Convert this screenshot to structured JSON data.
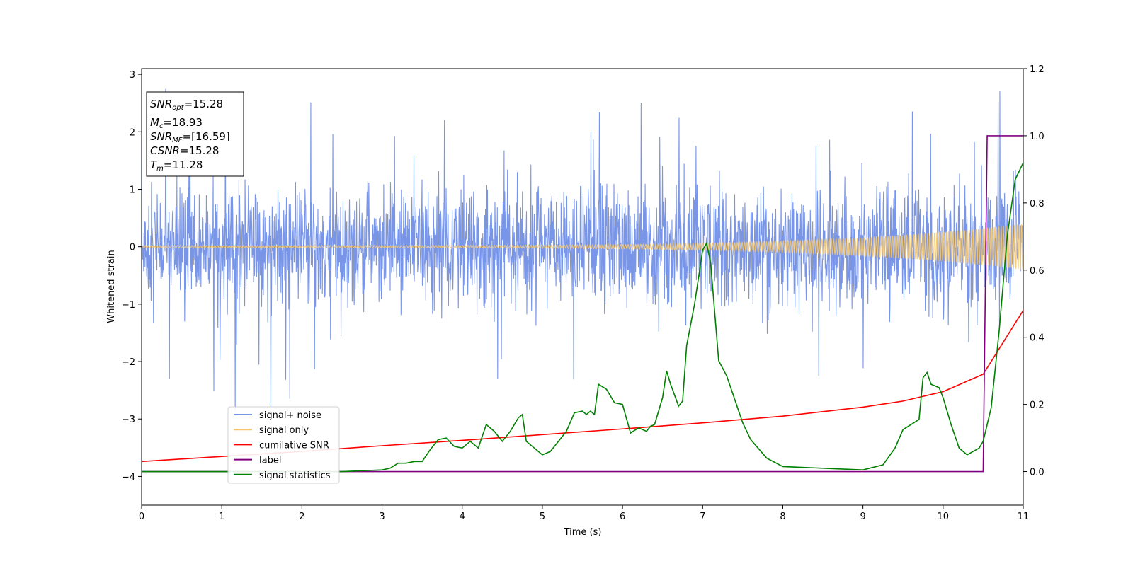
{
  "chart_data": {
    "type": "line",
    "xlabel": "Time (s)",
    "ylabel": "Whitened strain",
    "xlim": [
      0,
      11
    ],
    "ylim": [
      -4.5,
      3.1
    ],
    "y2lim": [
      -0.1,
      1.2
    ],
    "x_ticks": [
      "0",
      "1",
      "2",
      "3",
      "4",
      "5",
      "6",
      "7",
      "8",
      "9",
      "10",
      "11"
    ],
    "y_ticks": [
      "−4",
      "−3",
      "−2",
      "−1",
      "0",
      "1",
      "2",
      "3"
    ],
    "y2_ticks": [
      "0.0",
      "0.2",
      "0.4",
      "0.6",
      "0.8",
      "1.0",
      "1.2"
    ],
    "grid": false,
    "legend_position": "lower-left",
    "annotation": {
      "snr_opt": {
        "sym": "SNR",
        "sub": "opt",
        "value": "=15.28"
      },
      "mc": {
        "sym": "M",
        "sub": "c",
        "value": "=18.93"
      },
      "snr_mf": {
        "sym": "SNR",
        "sub": "MF",
        "value": "=[16.59]"
      },
      "csnr": {
        "sym": "CSNR",
        "value": "=15.28"
      },
      "tm": {
        "sym": "T",
        "sub": "m",
        "value": "=11.28"
      }
    },
    "series": [
      {
        "name": "signal+ noise",
        "color": "#7895e8",
        "axis": "left",
        "noise_band": [
          -1.3,
          1.3
        ],
        "peak_range": [
          -2.9,
          2.8
        ]
      },
      {
        "name": "signal only",
        "color": "#f5c66e",
        "axis": "left",
        "chirp_amplitude_end": 0.4,
        "chirp_cycles": 300
      },
      {
        "name": "cumilative SNR",
        "color": "#ff0000",
        "axis": "right",
        "x": [
          0,
          1,
          2,
          3,
          4,
          5,
          6,
          7,
          8,
          9,
          9.5,
          10,
          10.5,
          11
        ],
        "values": [
          0.03,
          0.045,
          0.06,
          0.077,
          0.093,
          0.11,
          0.127,
          0.145,
          0.165,
          0.192,
          0.21,
          0.238,
          0.29,
          0.48
        ]
      },
      {
        "name": "label",
        "color": "#800080",
        "axis": "right",
        "x": [
          0,
          10.5,
          10.55,
          11
        ],
        "values": [
          0,
          0,
          1,
          1
        ]
      },
      {
        "name": "signal statistics",
        "color": "#008000",
        "axis": "right",
        "x": [
          0,
          0.5,
          1,
          1.5,
          2,
          2.5,
          3,
          3.1,
          3.2,
          3.3,
          3.4,
          3.5,
          3.6,
          3.7,
          3.8,
          3.9,
          4.0,
          4.1,
          4.2,
          4.3,
          4.4,
          4.5,
          4.6,
          4.7,
          4.75,
          4.8,
          4.9,
          5.0,
          5.1,
          5.2,
          5.3,
          5.4,
          5.5,
          5.55,
          5.6,
          5.65,
          5.7,
          5.8,
          5.9,
          6.0,
          6.1,
          6.2,
          6.3,
          6.35,
          6.4,
          6.5,
          6.55,
          6.6,
          6.7,
          6.75,
          6.8,
          6.9,
          7.0,
          7.05,
          7.1,
          7.2,
          7.3,
          7.4,
          7.5,
          7.6,
          7.8,
          8.0,
          8.5,
          9.0,
          9.25,
          9.4,
          9.5,
          9.6,
          9.7,
          9.75,
          9.8,
          9.85,
          9.95,
          10.0,
          10.1,
          10.2,
          10.3,
          10.45,
          10.5,
          10.6,
          10.7,
          10.8,
          10.9,
          11.0
        ],
        "values": [
          0,
          0,
          0,
          0,
          0,
          0,
          0.005,
          0.01,
          0.025,
          0.025,
          0.03,
          0.03,
          0.065,
          0.095,
          0.1,
          0.075,
          0.07,
          0.09,
          0.07,
          0.14,
          0.12,
          0.09,
          0.12,
          0.16,
          0.17,
          0.09,
          0.07,
          0.05,
          0.06,
          0.09,
          0.12,
          0.175,
          0.18,
          0.17,
          0.18,
          0.17,
          0.26,
          0.245,
          0.205,
          0.2,
          0.115,
          0.13,
          0.12,
          0.135,
          0.14,
          0.22,
          0.3,
          0.26,
          0.195,
          0.21,
          0.375,
          0.5,
          0.66,
          0.68,
          0.62,
          0.33,
          0.285,
          0.215,
          0.145,
          0.095,
          0.04,
          0.015,
          0.01,
          0.005,
          0.02,
          0.07,
          0.125,
          0.14,
          0.155,
          0.28,
          0.295,
          0.26,
          0.25,
          0.22,
          0.14,
          0.07,
          0.05,
          0.07,
          0.09,
          0.19,
          0.42,
          0.7,
          0.87,
          0.92
        ]
      }
    ]
  }
}
